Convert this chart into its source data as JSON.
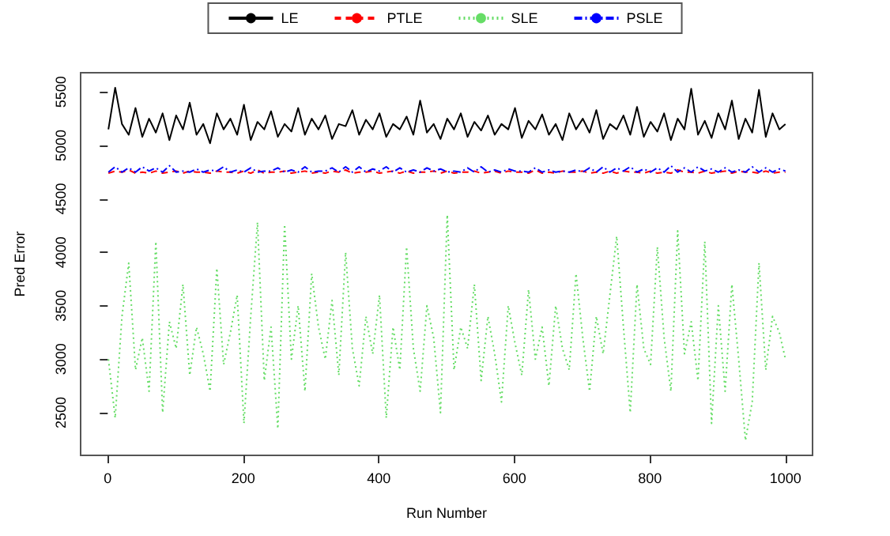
{
  "chart_data": {
    "type": "line",
    "xlabel": "Run Number",
    "ylabel": "Pred Error",
    "x": [
      1,
      11,
      21,
      31,
      41,
      51,
      61,
      71,
      81,
      91,
      101,
      111,
      121,
      131,
      141,
      151,
      161,
      171,
      181,
      191,
      201,
      211,
      221,
      231,
      241,
      251,
      261,
      271,
      281,
      291,
      301,
      311,
      321,
      331,
      341,
      351,
      361,
      371,
      381,
      391,
      401,
      411,
      421,
      431,
      441,
      451,
      461,
      471,
      481,
      491,
      501,
      511,
      521,
      531,
      541,
      551,
      561,
      571,
      581,
      591,
      601,
      611,
      621,
      631,
      641,
      651,
      661,
      671,
      681,
      691,
      701,
      711,
      721,
      731,
      741,
      751,
      761,
      771,
      781,
      791,
      801,
      811,
      821,
      831,
      841,
      851,
      861,
      871,
      881,
      891,
      901,
      911,
      921,
      931,
      941,
      951,
      961,
      971,
      981,
      991,
      1000
    ],
    "series": [
      {
        "name": "LE",
        "color": "#000000",
        "line_style": "solid",
        "values": [
          5150,
          5540,
          5200,
          5100,
          5350,
          5080,
          5250,
          5120,
          5300,
          5050,
          5280,
          5150,
          5400,
          5100,
          5200,
          5020,
          5300,
          5150,
          5250,
          5100,
          5380,
          5050,
          5220,
          5150,
          5320,
          5080,
          5200,
          5130,
          5350,
          5100,
          5250,
          5150,
          5280,
          5060,
          5200,
          5180,
          5330,
          5100,
          5240,
          5150,
          5300,
          5080,
          5200,
          5150,
          5270,
          5100,
          5420,
          5120,
          5200,
          5060,
          5250,
          5150,
          5300,
          5080,
          5220,
          5140,
          5280,
          5100,
          5200,
          5150,
          5350,
          5070,
          5230,
          5150,
          5290,
          5100,
          5200,
          5050,
          5300,
          5150,
          5250,
          5120,
          5330,
          5060,
          5200,
          5150,
          5280,
          5100,
          5360,
          5080,
          5220,
          5130,
          5300,
          5050,
          5250,
          5150,
          5530,
          5100,
          5230,
          5070,
          5300,
          5150,
          5420,
          5060,
          5250,
          5120,
          5520,
          5080,
          5300,
          5150,
          5200
        ]
      },
      {
        "name": "PTLE",
        "color": "#ff0000",
        "line_style": "dashed",
        "values": [
          4740,
          4760,
          4750,
          4770,
          4740,
          4750,
          4740,
          4760,
          4740,
          4750,
          4760,
          4740,
          4760,
          4750,
          4750,
          4740,
          4760,
          4750,
          4750,
          4740,
          4760,
          4740,
          4770,
          4740,
          4750,
          4750,
          4760,
          4740,
          4750,
          4760,
          4740,
          4750,
          4740,
          4760,
          4750,
          4770,
          4740,
          4750,
          4750,
          4760,
          4740,
          4750,
          4760,
          4740,
          4760,
          4740,
          4750,
          4750,
          4760,
          4740,
          4760,
          4740,
          4750,
          4750,
          4760,
          4740,
          4750,
          4760,
          4740,
          4760,
          4750,
          4750,
          4740,
          4770,
          4740,
          4750,
          4740,
          4760,
          4750,
          4750,
          4760,
          4740,
          4750,
          4740,
          4760,
          4740,
          4760,
          4750,
          4750,
          4740,
          4760,
          4740,
          4750,
          4740,
          4770,
          4750,
          4750,
          4740,
          4760,
          4740,
          4750,
          4760,
          4740,
          4760,
          4750,
          4750,
          4740,
          4760,
          4740,
          4750,
          4750
        ]
      },
      {
        "name": "SLE",
        "color": "#66dd66",
        "line_style": "dotted",
        "values": [
          3000,
          2450,
          3400,
          3900,
          2900,
          3200,
          2700,
          4100,
          2500,
          3350,
          3100,
          3700,
          2850,
          3300,
          3050,
          2700,
          3850,
          2950,
          3250,
          3600,
          2400,
          3400,
          4280,
          2800,
          3300,
          2350,
          4260,
          3000,
          3500,
          2700,
          3800,
          3300,
          3000,
          3550,
          2850,
          4000,
          3100,
          2750,
          3400,
          3050,
          3600,
          2450,
          3300,
          2900,
          4050,
          3100,
          2700,
          3500,
          3200,
          2500,
          4350,
          2900,
          3300,
          3100,
          3700,
          2800,
          3400,
          3050,
          2600,
          3500,
          3150,
          2850,
          3650,
          3000,
          3300,
          2750,
          3500,
          3100,
          2900,
          3800,
          3200,
          2700,
          3400,
          3050,
          3600,
          4150,
          3300,
          2500,
          3700,
          3100,
          2950,
          4050,
          3200,
          2700,
          4200,
          3050,
          3350,
          2800,
          4100,
          2400,
          3500,
          2700,
          3700,
          3000,
          2240,
          2600,
          3900,
          2900,
          3400,
          3250,
          3000
        ]
      },
      {
        "name": "PSLE",
        "color": "#0000ff",
        "line_style": "dashdot",
        "values": [
          4750,
          4800,
          4750,
          4790,
          4750,
          4800,
          4760,
          4790,
          4750,
          4810,
          4750,
          4760,
          4750,
          4780,
          4750,
          4770,
          4760,
          4800,
          4750,
          4770,
          4750,
          4790,
          4750,
          4760,
          4760,
          4790,
          4750,
          4770,
          4750,
          4800,
          4750,
          4760,
          4760,
          4790,
          4750,
          4800,
          4750,
          4800,
          4750,
          4780,
          4760,
          4800,
          4750,
          4790,
          4750,
          4770,
          4750,
          4790,
          4760,
          4780,
          4750,
          4760,
          4750,
          4790,
          4750,
          4800,
          4750,
          4770,
          4750,
          4780,
          4760,
          4760,
          4750,
          4790,
          4750,
          4770,
          4750,
          4760,
          4750,
          4770,
          4750,
          4790,
          4750,
          4800,
          4750,
          4790,
          4760,
          4800,
          4750,
          4780,
          4750,
          4790,
          4750,
          4810,
          4750,
          4790,
          4750,
          4800,
          4760,
          4780,
          4750,
          4790,
          4750,
          4770,
          4750,
          4800,
          4750,
          4790,
          4750,
          4780,
          4760
        ]
      }
    ],
    "xlim": [
      -40,
      1040
    ],
    "xticks": [
      0,
      200,
      400,
      600,
      800,
      1000
    ],
    "ylim": [
      2100,
      5680
    ],
    "yticks": [
      2500,
      3000,
      3500,
      4000,
      4500,
      5000,
      5500
    ],
    "grid": false,
    "legend": "top",
    "marker": "none"
  }
}
